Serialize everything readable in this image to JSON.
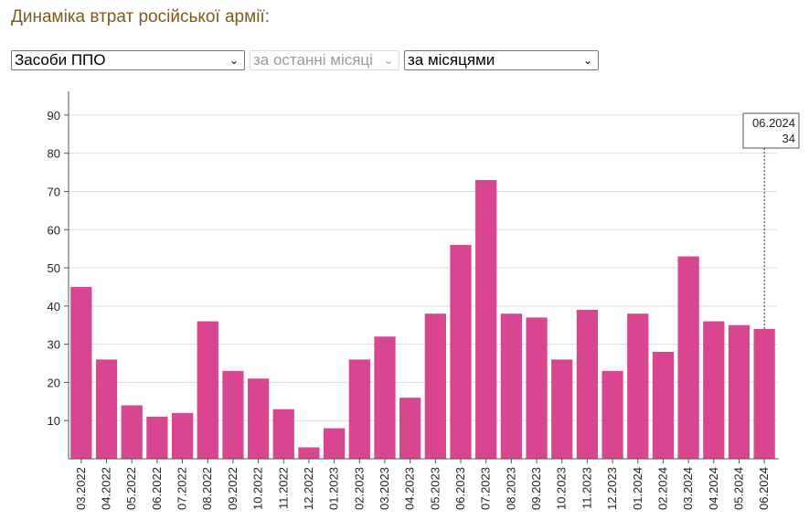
{
  "header": {
    "title": "Динаміка втрат російської армії:"
  },
  "filters": {
    "category": "Засоби ППО",
    "period": "за останні місяці",
    "grouping": "за місяцями"
  },
  "tooltip": {
    "label": "06.2024",
    "value": "34"
  },
  "colors": {
    "bar": "#d9468f",
    "grid": "#dddddd",
    "axis": "#555555",
    "title": "#7a5c1c"
  },
  "chart_data": {
    "type": "bar",
    "categories": [
      "03.2022",
      "04.2022",
      "05.2022",
      "06.2022",
      "07.2022",
      "08.2022",
      "09.2022",
      "10.2022",
      "11.2022",
      "12.2022",
      "01.2023",
      "02.2023",
      "03.2023",
      "04.2023",
      "05.2023",
      "06.2023",
      "07.2023",
      "08.2023",
      "09.2023",
      "10.2023",
      "11.2023",
      "12.2023",
      "01.2024",
      "02.2024",
      "03.2024",
      "04.2024",
      "05.2024",
      "06.2024"
    ],
    "values": [
      45,
      26,
      14,
      11,
      12,
      36,
      23,
      21,
      13,
      3,
      8,
      26,
      32,
      16,
      38,
      56,
      73,
      38,
      37,
      26,
      39,
      23,
      38,
      28,
      53,
      36,
      35,
      34
    ],
    "ylim": [
      0,
      95
    ],
    "yticks": [
      10,
      20,
      30,
      40,
      50,
      60,
      70,
      80,
      90
    ],
    "grid": true,
    "highlight_index": 27
  }
}
